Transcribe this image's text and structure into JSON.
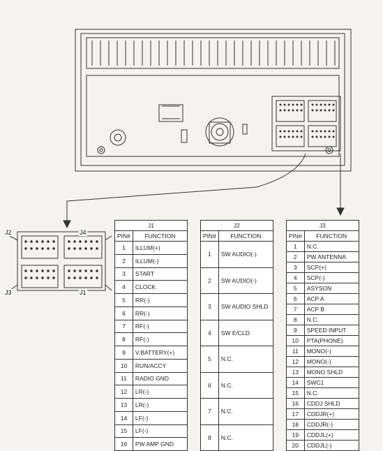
{
  "connector_labels": {
    "j1": "J1",
    "j2": "J2",
    "j3": "J3",
    "j4": "J4"
  },
  "table_headers": {
    "pin": "PIN#",
    "fn": "FUNCTION"
  },
  "tables": {
    "j1": {
      "title": "J1",
      "rows": [
        {
          "n": "1",
          "f": "ILLUM(+)"
        },
        {
          "n": "2",
          "f": "ILLUM(-)"
        },
        {
          "n": "3",
          "f": "START"
        },
        {
          "n": "4",
          "f": "CLOCK"
        },
        {
          "n": "5",
          "f": "RR(-)"
        },
        {
          "n": "6",
          "f": "RR(-)"
        },
        {
          "n": "7",
          "f": "RF(-)"
        },
        {
          "n": "8",
          "f": "RF(-)"
        },
        {
          "n": "9",
          "f": "V.BATTERY(+)"
        },
        {
          "n": "10",
          "f": "RUN/ACCY"
        },
        {
          "n": "11",
          "f": "RADIO GND"
        },
        {
          "n": "12",
          "f": "LR(-)"
        },
        {
          "n": "13",
          "f": "LR(-)"
        },
        {
          "n": "14",
          "f": "LF(-)"
        },
        {
          "n": "15",
          "f": "LF(-)"
        },
        {
          "n": "16",
          "f": "PW AMP GND"
        }
      ]
    },
    "j2": {
      "title": "J2",
      "rows": [
        {
          "n": "1",
          "f": "SW AUDIO(-)"
        },
        {
          "n": "2",
          "f": "SW AUDIO(-)"
        },
        {
          "n": "3",
          "f": "SW AUDIO SHLD"
        },
        {
          "n": "4",
          "f": "SW E/CLD"
        },
        {
          "n": "5",
          "f": "N.C."
        },
        {
          "n": "6",
          "f": "N.C."
        },
        {
          "n": "7",
          "f": "N.C."
        },
        {
          "n": "8",
          "f": "N.C."
        }
      ]
    },
    "j3": {
      "title": "J3",
      "rows": [
        {
          "n": "1",
          "f": "N.C."
        },
        {
          "n": "2",
          "f": "PW ANTENNA"
        },
        {
          "n": "3",
          "f": "SCP(+)"
        },
        {
          "n": "4",
          "f": "SCP(-)"
        },
        {
          "n": "5",
          "f": "ASYSON"
        },
        {
          "n": "6",
          "f": "ACP A"
        },
        {
          "n": "7",
          "f": "ACP B"
        },
        {
          "n": "8",
          "f": "N.C."
        },
        {
          "n": "9",
          "f": "SPEED INPUT"
        },
        {
          "n": "10",
          "f": "PTA(PHONE)"
        },
        {
          "n": "11",
          "f": "MONO(-)"
        },
        {
          "n": "12",
          "f": "MONO(-)"
        },
        {
          "n": "13",
          "f": "MONO SHLD"
        },
        {
          "n": "14",
          "f": "SWC1"
        },
        {
          "n": "15",
          "f": "N.C."
        },
        {
          "n": "16",
          "f": "CDDJ SHLD"
        },
        {
          "n": "17",
          "f": "CDDJR(+)"
        },
        {
          "n": "18",
          "f": "CDDJR(-)"
        },
        {
          "n": "19",
          "f": "CDDJL(+)"
        },
        {
          "n": "20",
          "f": "CDDJL(-)"
        }
      ]
    }
  },
  "style": {
    "stroke": "#333333",
    "stroke_width": 1,
    "bg": "#f5f3f0",
    "table_bg": "#ffffff",
    "font_size": 9
  }
}
